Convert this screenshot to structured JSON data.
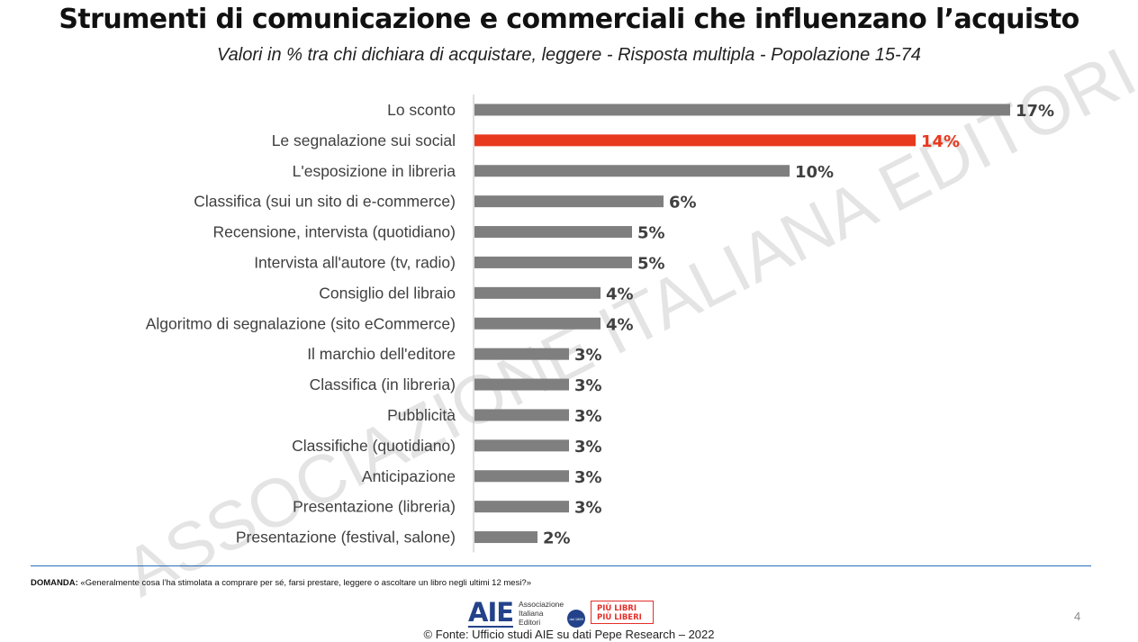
{
  "header": {
    "title": "Strumenti di comunicazione e commerciali che influenzano l’acquisto",
    "subtitle": "Valori in % tra chi dichiara di acquistare, leggere - Risposta multipla - Popolazione 15-74"
  },
  "watermark": "ASSOCIAZIONE ITALIANA EDITORI",
  "chart_data": {
    "type": "bar",
    "orientation": "horizontal",
    "categories": [
      "Lo sconto",
      "Le segnalazione sui social",
      "L'esposizione in libreria",
      "Classifica (sui un sito di e-commerce)",
      "Recensione, intervista (quotidiano)",
      "Intervista all'autore (tv, radio)",
      "Consiglio del libraio",
      "Algoritmo di segnalazione (sito eCommerce)",
      "Il marchio dell'editore",
      "Classifica (in libreria)",
      "Pubblicità",
      "Classifiche (quotidiano)",
      "Anticipazione",
      "Presentazione (libreria)",
      "Presentazione (festival, salone)"
    ],
    "values": [
      17,
      14,
      10,
      6,
      5,
      5,
      4,
      4,
      3,
      3,
      3,
      3,
      3,
      3,
      2
    ],
    "value_labels": [
      "17%",
      "14%",
      "10%",
      "6%",
      "5%",
      "5%",
      "4%",
      "4%",
      "3%",
      "3%",
      "3%",
      "3%",
      "3%",
      "3%",
      "2%"
    ],
    "highlight_index": 1,
    "colors": {
      "bar": "#7f7f7f",
      "highlight": "#e8391f",
      "label": "#404040",
      "axis": "#bfbfbf"
    },
    "xlim": [
      0,
      17
    ],
    "grid": false,
    "legend": "none"
  },
  "footer": {
    "question_label": "DOMANDA:",
    "question_text": "«Generalmente cosa l’ha stimolata a comprare per sé, farsi prestare, leggere o ascoltare un libro negli ultimi 12 mesi?»",
    "aie_logo": {
      "mark": "AIE",
      "line1": "Associazione",
      "line2": "Italiana",
      "line3": "Editori",
      "seal": "dal 1869"
    },
    "plpl_logo": {
      "line1": "PIÙ LIBRI",
      "line2": "PIÙ LIBERI"
    },
    "page_number": "4",
    "source": "© Fonte: Ufficio studi AIE su dati Pepe Research – 2022"
  }
}
